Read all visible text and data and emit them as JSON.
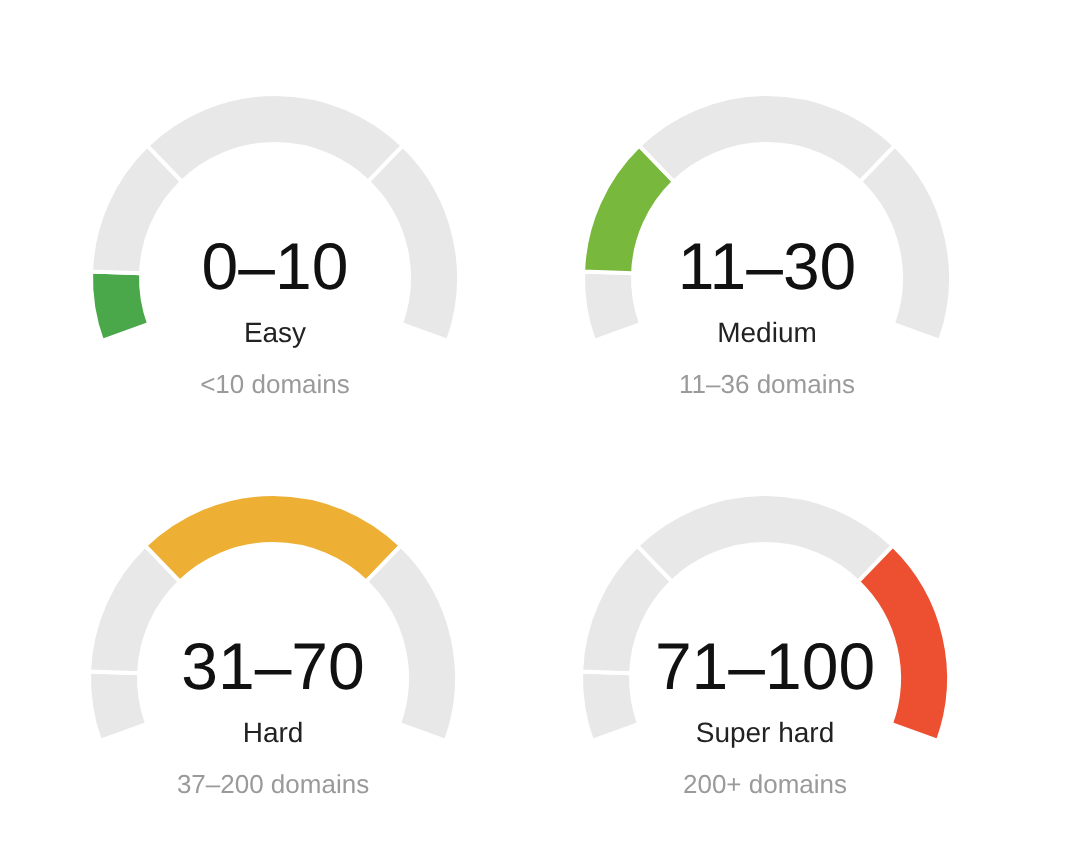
{
  "chart_data": [
    {
      "type": "donut",
      "title": "0–10",
      "subtitle": "Easy",
      "annotations": [
        "<10 domains"
      ],
      "categories": [
        null,
        null,
        null,
        null
      ],
      "values": [
        10,
        20,
        40,
        30
      ],
      "colors": [
        "#4aa84a",
        "#e8e8e8",
        "#e8e8e8",
        "#e8e8e8"
      ]
    },
    {
      "type": "donut",
      "title": "11–30",
      "subtitle": "Medium",
      "annotations": [
        "11–36 domains"
      ],
      "categories": [
        null,
        null,
        null,
        null
      ],
      "values": [
        10,
        20,
        40,
        30
      ],
      "colors": [
        "#e8e8e8",
        "#78b83c",
        "#e8e8e8",
        "#e8e8e8"
      ]
    },
    {
      "type": "donut",
      "title": "31–70",
      "subtitle": "Hard",
      "annotations": [
        "37–200 domains"
      ],
      "categories": [
        null,
        null,
        null,
        null
      ],
      "values": [
        10,
        20,
        40,
        30
      ],
      "colors": [
        "#e8e8e8",
        "#e8e8e8",
        "#eeb034",
        "#e8e8e8"
      ]
    },
    {
      "type": "donut",
      "title": "71–100",
      "subtitle": "Super hard",
      "annotations": [
        "200+ domains"
      ],
      "categories": [
        null,
        null,
        null,
        null
      ],
      "values": [
        10,
        20,
        40,
        30
      ],
      "colors": [
        "#e8e8e8",
        "#e8e8e8",
        "#e8e8e8",
        "#ec5030"
      ]
    }
  ]
}
